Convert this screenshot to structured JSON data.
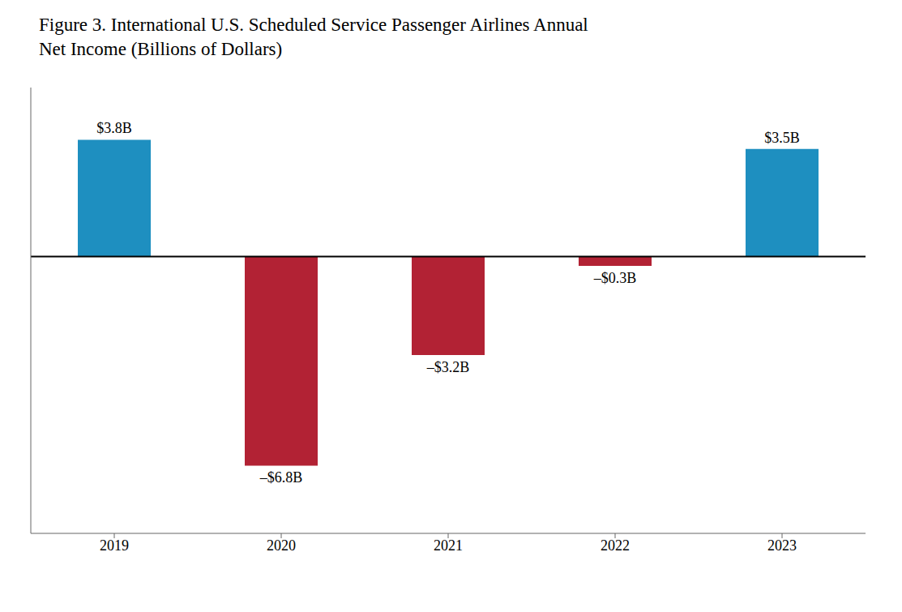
{
  "chart_data": {
    "type": "bar",
    "title": "Figure 3. International U.S. Scheduled Service Passenger Airlines Annual\nNet Income (Billions of Dollars)",
    "categories": [
      "2019",
      "2020",
      "2021",
      "2022",
      "2023"
    ],
    "values": [
      3.8,
      -6.8,
      -3.2,
      -0.3,
      3.5
    ],
    "value_labels": [
      "$3.8B",
      "–$6.8B",
      "–$3.2B",
      "–$0.3B",
      "$3.5B"
    ],
    "colors": [
      "#1e8fc0",
      "#b22234",
      "#b22234",
      "#b22234",
      "#1e8fc0"
    ],
    "ylim": [
      -9.0,
      5.5
    ],
    "data_labels": true,
    "tick_labels": "x",
    "grid": false
  }
}
